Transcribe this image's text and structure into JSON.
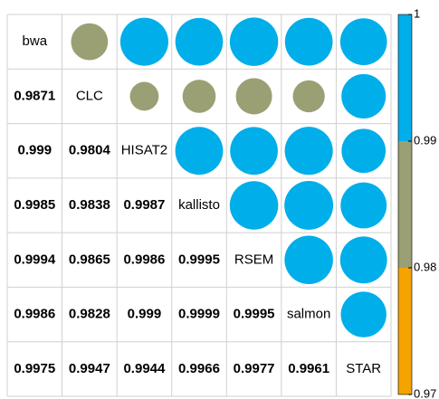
{
  "chart_data": {
    "type": "corrplot",
    "labels": [
      "bwa",
      "CLC",
      "HISAT2",
      "kallisto",
      "RSEM",
      "salmon",
      "STAR"
    ],
    "matrix": [
      [],
      [
        0.9871
      ],
      [
        0.999,
        0.9804
      ],
      [
        0.9985,
        0.9838,
        0.9987
      ],
      [
        0.9994,
        0.9865,
        0.9986,
        0.9995
      ],
      [
        0.9986,
        0.9828,
        0.999,
        0.9999,
        0.9995
      ],
      [
        0.9975,
        0.9947,
        0.9944,
        0.9966,
        0.9977,
        0.9961
      ]
    ],
    "ylim": [
      0.97,
      1
    ],
    "yticks": [
      0.97,
      0.98,
      0.99,
      1
    ],
    "colors": [
      "#f5a300",
      "#9aa074",
      "#00aee9"
    ]
  }
}
